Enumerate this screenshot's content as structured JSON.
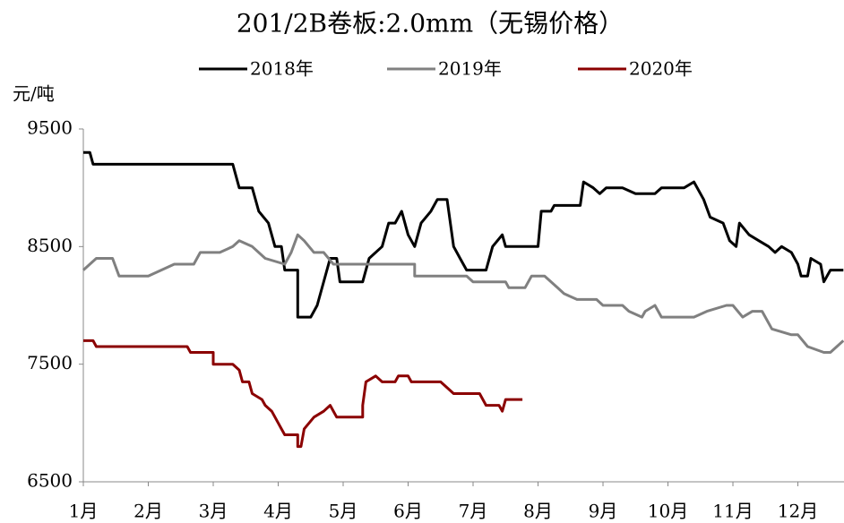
{
  "chart_data": {
    "type": "line",
    "title": "201/2B卷板:2.0mm（无锡价格）",
    "y_label": "元/吨",
    "xlim": [
      1,
      12.71
    ],
    "ylim": [
      6500,
      9500
    ],
    "yticks": [
      6500,
      7500,
      8500,
      9500
    ],
    "xticks": [
      {
        "value": 1,
        "label": "1月"
      },
      {
        "value": 2,
        "label": "2月"
      },
      {
        "value": 3,
        "label": "3月"
      },
      {
        "value": 4,
        "label": "4月"
      },
      {
        "value": 5,
        "label": "5月"
      },
      {
        "value": 6,
        "label": "6月"
      },
      {
        "value": 7,
        "label": "7月"
      },
      {
        "value": 8,
        "label": "8月"
      },
      {
        "value": 9,
        "label": "9月"
      },
      {
        "value": 10,
        "label": "10月"
      },
      {
        "value": 11,
        "label": "11月"
      },
      {
        "value": 12,
        "label": "12月"
      }
    ],
    "series": [
      {
        "name": "2018年",
        "color": "#000000",
        "x": [
          1.0,
          1.1,
          1.15,
          3.3,
          3.4,
          3.6,
          3.7,
          3.85,
          3.95,
          4.05,
          4.1,
          4.3,
          4.3,
          4.5,
          4.6,
          4.8,
          4.9,
          4.95,
          5.3,
          5.4,
          5.6,
          5.7,
          5.8,
          5.9,
          6.0,
          6.1,
          6.2,
          6.35,
          6.45,
          6.6,
          6.7,
          6.8,
          6.9,
          7.2,
          7.3,
          7.45,
          7.5,
          8.0,
          8.05,
          8.2,
          8.25,
          8.65,
          8.7,
          8.85,
          8.95,
          9.05,
          9.3,
          9.5,
          9.8,
          9.9,
          10.25,
          10.4,
          10.55,
          10.65,
          10.85,
          10.95,
          11.05,
          11.1,
          11.25,
          11.4,
          11.55,
          11.65,
          11.75,
          11.9,
          12.0,
          12.05,
          12.15,
          12.2,
          12.35,
          12.4,
          12.5,
          12.7
        ],
        "values": [
          9300,
          9300,
          9200,
          9200,
          9000,
          9000,
          8800,
          8700,
          8500,
          8500,
          8300,
          8300,
          7900,
          7900,
          8000,
          8400,
          8400,
          8200,
          8200,
          8400,
          8500,
          8700,
          8700,
          8800,
          8600,
          8500,
          8700,
          8800,
          8900,
          8900,
          8500,
          8400,
          8300,
          8300,
          8500,
          8600,
          8500,
          8500,
          8800,
          8800,
          8850,
          8850,
          9050,
          9000,
          8950,
          9000,
          9000,
          8950,
          8950,
          9000,
          9000,
          9050,
          8900,
          8750,
          8700,
          8550,
          8500,
          8700,
          8600,
          8550,
          8500,
          8450,
          8500,
          8450,
          8350,
          8250,
          8250,
          8400,
          8350,
          8200,
          8300,
          8300
        ]
      },
      {
        "name": "2019年",
        "color": "#808080",
        "x": [
          1.0,
          1.1,
          1.2,
          1.45,
          1.55,
          2.0,
          2.2,
          2.4,
          2.7,
          2.8,
          3.1,
          3.3,
          3.4,
          3.6,
          3.8,
          4.1,
          4.2,
          4.3,
          4.4,
          4.55,
          4.7,
          4.85,
          6.1,
          6.1,
          6.9,
          7.0,
          7.5,
          7.55,
          7.8,
          7.9,
          8.1,
          8.3,
          8.4,
          8.6,
          8.9,
          9.0,
          9.3,
          9.4,
          9.6,
          9.65,
          9.8,
          9.9,
          10.0,
          10.4,
          10.6,
          10.9,
          11.0,
          11.15,
          11.3,
          11.45,
          11.6,
          11.9,
          12.0,
          12.15,
          12.4,
          12.5,
          12.6,
          12.7
        ],
        "values": [
          8300,
          8350,
          8400,
          8400,
          8250,
          8250,
          8300,
          8350,
          8350,
          8450,
          8450,
          8500,
          8550,
          8500,
          8400,
          8350,
          8450,
          8600,
          8550,
          8450,
          8450,
          8350,
          8350,
          8250,
          8250,
          8200,
          8200,
          8150,
          8150,
          8250,
          8250,
          8150,
          8100,
          8050,
          8050,
          8000,
          8000,
          7950,
          7900,
          7950,
          8000,
          7900,
          7900,
          7900,
          7950,
          8000,
          8000,
          7900,
          7950,
          7950,
          7800,
          7750,
          7750,
          7650,
          7600,
          7600,
          7650,
          7700
        ]
      },
      {
        "name": "2020年",
        "color": "#8b0000",
        "x": [
          1.0,
          1.15,
          1.2,
          2.6,
          2.65,
          3.0,
          3.0,
          3.3,
          3.4,
          3.45,
          3.55,
          3.6,
          3.75,
          3.8,
          3.9,
          4.0,
          4.05,
          4.1,
          4.3,
          4.3,
          4.35,
          4.4,
          4.55,
          4.7,
          4.8,
          4.9,
          5.3,
          5.3,
          5.35,
          5.5,
          5.6,
          5.8,
          5.85,
          6.0,
          6.05,
          6.5,
          6.6,
          6.7,
          7.1,
          7.2,
          7.4,
          7.45,
          7.5,
          7.76
        ],
        "values": [
          7700,
          7700,
          7650,
          7650,
          7600,
          7600,
          7500,
          7500,
          7450,
          7350,
          7350,
          7250,
          7200,
          7150,
          7100,
          7000,
          6950,
          6900,
          6900,
          6800,
          6800,
          6950,
          7050,
          7100,
          7150,
          7050,
          7050,
          7150,
          7350,
          7400,
          7350,
          7350,
          7400,
          7400,
          7350,
          7350,
          7300,
          7250,
          7250,
          7150,
          7150,
          7100,
          7200,
          7200
        ]
      }
    ]
  }
}
